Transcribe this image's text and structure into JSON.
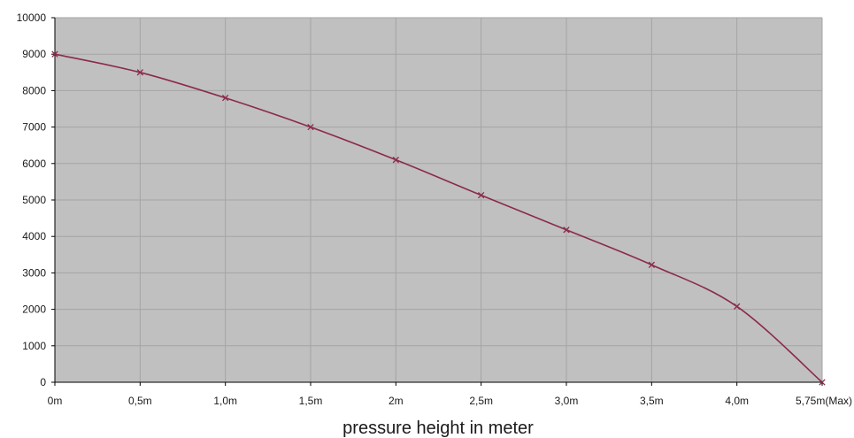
{
  "chart_data": {
    "type": "line",
    "title": "",
    "xlabel": "pressure height in meter",
    "ylabel": "",
    "categories": [
      "0m",
      "0,5m",
      "1,0m",
      "1,5m",
      "2m",
      "2,5m",
      "3,0m",
      "3,5m",
      "4,0m",
      "5,75m(Max)"
    ],
    "series": [
      {
        "values": [
          9000,
          8500,
          7800,
          7000,
          6100,
          5130,
          4180,
          3220,
          2080,
          0
        ]
      }
    ],
    "ylim": [
      0,
      10000
    ],
    "yticks": [
      0,
      1000,
      2000,
      3000,
      4000,
      5000,
      6000,
      7000,
      8000,
      9000,
      10000
    ],
    "grid": true,
    "legend": "none",
    "colors": {
      "plot_background": "#c0c0c0",
      "grid": "#a4a4a4",
      "line": "#8b2a4a",
      "marker": "#8b2a4a",
      "axis": "#000000"
    }
  }
}
